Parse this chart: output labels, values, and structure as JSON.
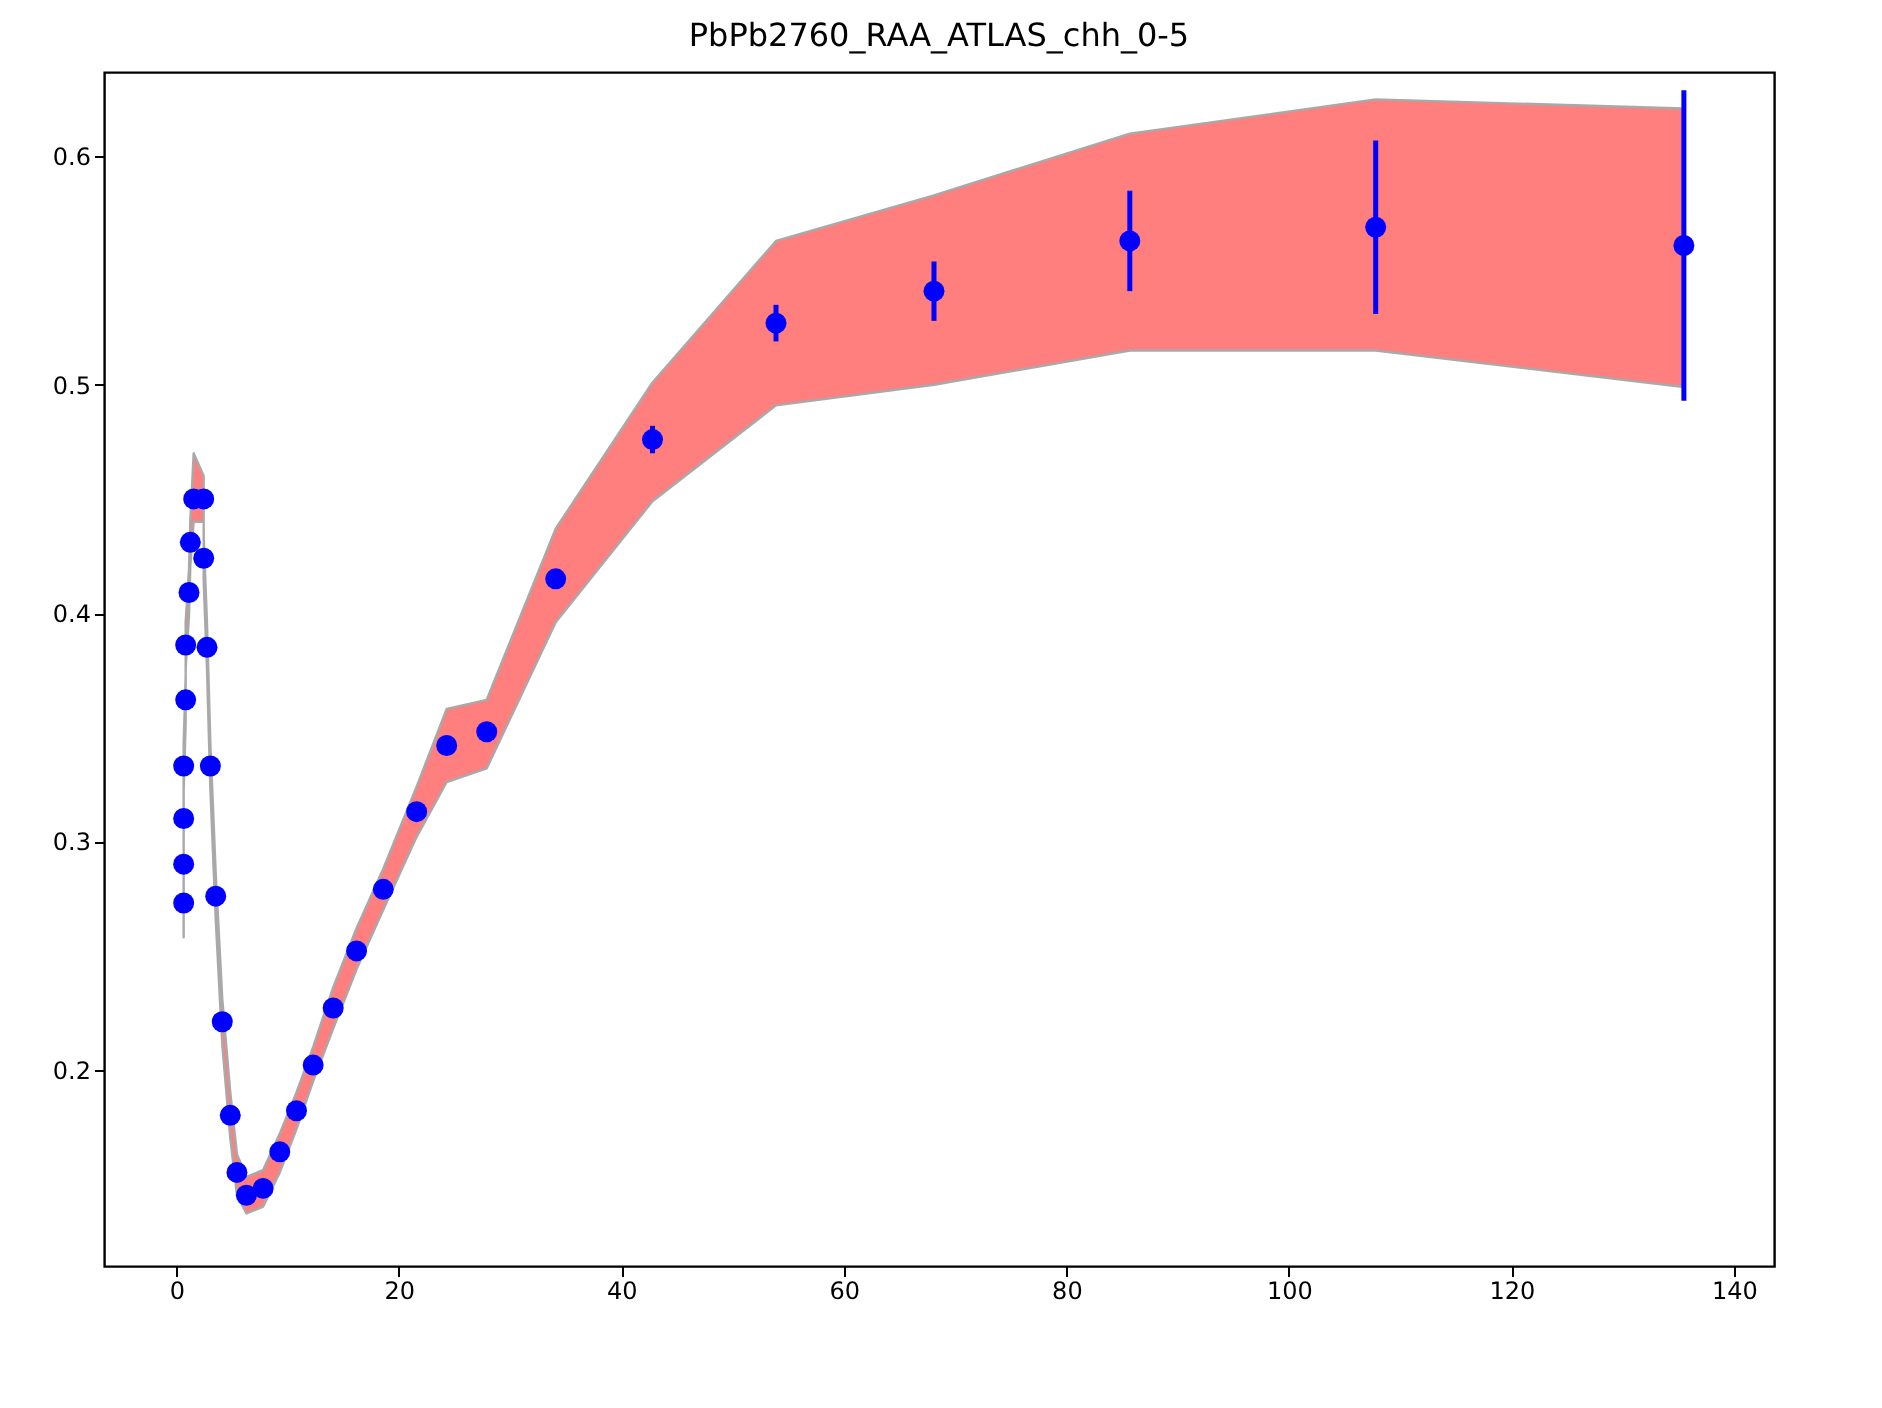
{
  "chart_data": {
    "type": "scatter",
    "title": "PbPb2760_RAA_ATLAS_chh_0-5",
    "xlim": [
      -6.5,
      143.6
    ],
    "ylim": [
      0.114,
      0.637
    ],
    "xticks": [
      0,
      20,
      40,
      60,
      80,
      100,
      120,
      140
    ],
    "yticks": [
      0.2,
      0.3,
      0.4,
      0.5,
      0.6
    ],
    "marker": "circle",
    "series": [
      {
        "color": "#0000ff",
        "x": [
          0.66,
          0.66,
          0.66,
          0.66,
          0.84,
          0.84,
          1.14,
          1.26,
          1.56,
          2.46,
          2.46,
          2.76,
          3.06,
          3.54,
          4.13,
          4.85,
          5.45,
          6.3,
          7.8,
          9.3,
          10.8,
          12.3,
          14.1,
          16.2,
          18.6,
          21.6,
          24.3,
          27.9,
          34.1,
          42.8,
          53.9,
          68.1,
          85.7,
          107.8,
          135.5
        ],
        "values": [
          0.273,
          0.29,
          0.31,
          0.333,
          0.362,
          0.386,
          0.409,
          0.431,
          0.45,
          0.45,
          0.424,
          0.385,
          0.333,
          0.276,
          0.221,
          0.18,
          0.155,
          0.145,
          0.148,
          0.164,
          0.182,
          0.202,
          0.227,
          0.252,
          0.279,
          0.313,
          0.342,
          0.348,
          0.415,
          0.476,
          0.527,
          0.541,
          0.563,
          0.569,
          0.561
        ],
        "errors": [
          null,
          null,
          null,
          null,
          null,
          null,
          null,
          null,
          null,
          null,
          null,
          null,
          null,
          null,
          null,
          null,
          null,
          null,
          null,
          null,
          null,
          null,
          null,
          null,
          null,
          null,
          null,
          null,
          null,
          0.006,
          0.008,
          0.013,
          0.022,
          0.038,
          0.068
        ],
        "lower": [
          0.258,
          0.278,
          0.298,
          0.322,
          0.352,
          0.376,
          0.399,
          0.421,
          0.44,
          0.44,
          0.414,
          0.375,
          0.323,
          0.266,
          0.211,
          0.17,
          0.145,
          0.137,
          0.14,
          0.155,
          0.174,
          0.195,
          0.218,
          0.244,
          0.27,
          0.302,
          0.326,
          0.332,
          0.396,
          0.449,
          0.491,
          0.5,
          0.515,
          0.515,
          0.499
        ],
        "upper": [
          0.283,
          0.3,
          0.32,
          0.343,
          0.372,
          0.396,
          0.419,
          0.441,
          0.47,
          0.46,
          0.434,
          0.395,
          0.343,
          0.286,
          0.231,
          0.19,
          0.163,
          0.153,
          0.156,
          0.172,
          0.19,
          0.21,
          0.236,
          0.262,
          0.288,
          0.324,
          0.358,
          0.362,
          0.437,
          0.501,
          0.563,
          0.583,
          0.61,
          0.625,
          0.621
        ]
      }
    ]
  }
}
